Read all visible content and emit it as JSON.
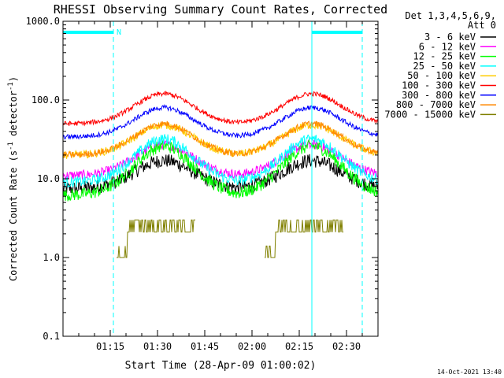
{
  "chart_data": {
    "type": "line",
    "title": "RHESSI Observing Summary Count Rates, Corrected",
    "xlabel": "Start Time (28-Apr-09 01:00:02)",
    "ylabel_main": "Corrected Count Rate (s",
    "ylabel_sup1": "-1",
    "ylabel_mid": " detector",
    "ylabel_sup2": "-1",
    "ylabel_end": ")",
    "yscale": "log",
    "ylim": [
      0.1,
      1000
    ],
    "xlim_minutes": [
      0,
      100
    ],
    "yticks": [
      {
        "v": 0.1,
        "label": "0.1"
      },
      {
        "v": 1,
        "label": "1.0"
      },
      {
        "v": 10,
        "label": "10.0"
      },
      {
        "v": 100,
        "label": "100.0"
      },
      {
        "v": 1000,
        "label": "1000.0"
      }
    ],
    "xticks": [
      {
        "m": 15,
        "label": "01:15"
      },
      {
        "m": 30,
        "label": "01:30"
      },
      {
        "m": 45,
        "label": "01:45"
      },
      {
        "m": 60,
        "label": "02:00"
      },
      {
        "m": 75,
        "label": "02:15"
      },
      {
        "m": 90,
        "label": "02:30"
      }
    ],
    "legend_header": [
      "Det 1,3,4,5,6,9,",
      "Att 0"
    ],
    "legend_position": "right",
    "series": [
      {
        "name": "3 - 6 keV",
        "color": "#000000",
        "base": 7.5,
        "peak": 17,
        "noise": 0.09
      },
      {
        "name": "6 - 12 keV",
        "color": "#ff00ff",
        "base": 11,
        "peak": 27,
        "noise": 0.06
      },
      {
        "name": "12 - 25 keV",
        "color": "#00ff00",
        "base": 6.2,
        "peak": 26,
        "noise": 0.08
      },
      {
        "name": "25 - 50 keV",
        "color": "#00ffff",
        "base": 9,
        "peak": 32,
        "noise": 0.07
      },
      {
        "name": "50 - 100 keV",
        "color": "#ffcc00",
        "base": 20,
        "peak": 48,
        "noise": 0.05
      },
      {
        "name": "100 - 300 keV",
        "color": "#ff0000",
        "base": 50,
        "peak": 120,
        "noise": 0.03
      },
      {
        "name": "300 - 800 keV",
        "color": "#0000ff",
        "base": 34,
        "peak": 80,
        "noise": 0.03
      },
      {
        "name": "800 - 7000 keV",
        "color": "#ff8800",
        "base": 20,
        "peak": 50,
        "noise": 0.04
      },
      {
        "name": "7000 - 15000 keV",
        "color": "#808000",
        "base": 1,
        "peak": 3,
        "noise": 0
      }
    ],
    "peaks_minutes": [
      32,
      79
    ],
    "peak_width_minutes": 13,
    "saa_intervals_minutes": [
      [
        0,
        16
      ],
      [
        79,
        95
      ]
    ],
    "night_marks_minutes": [
      16,
      79,
      95
    ],
    "flag_label": "N"
  },
  "footer": {
    "timestamp": "14-Oct-2021 13:40"
  },
  "colors": {
    "axis": "#000000",
    "saa_bar": "#00ffff"
  }
}
